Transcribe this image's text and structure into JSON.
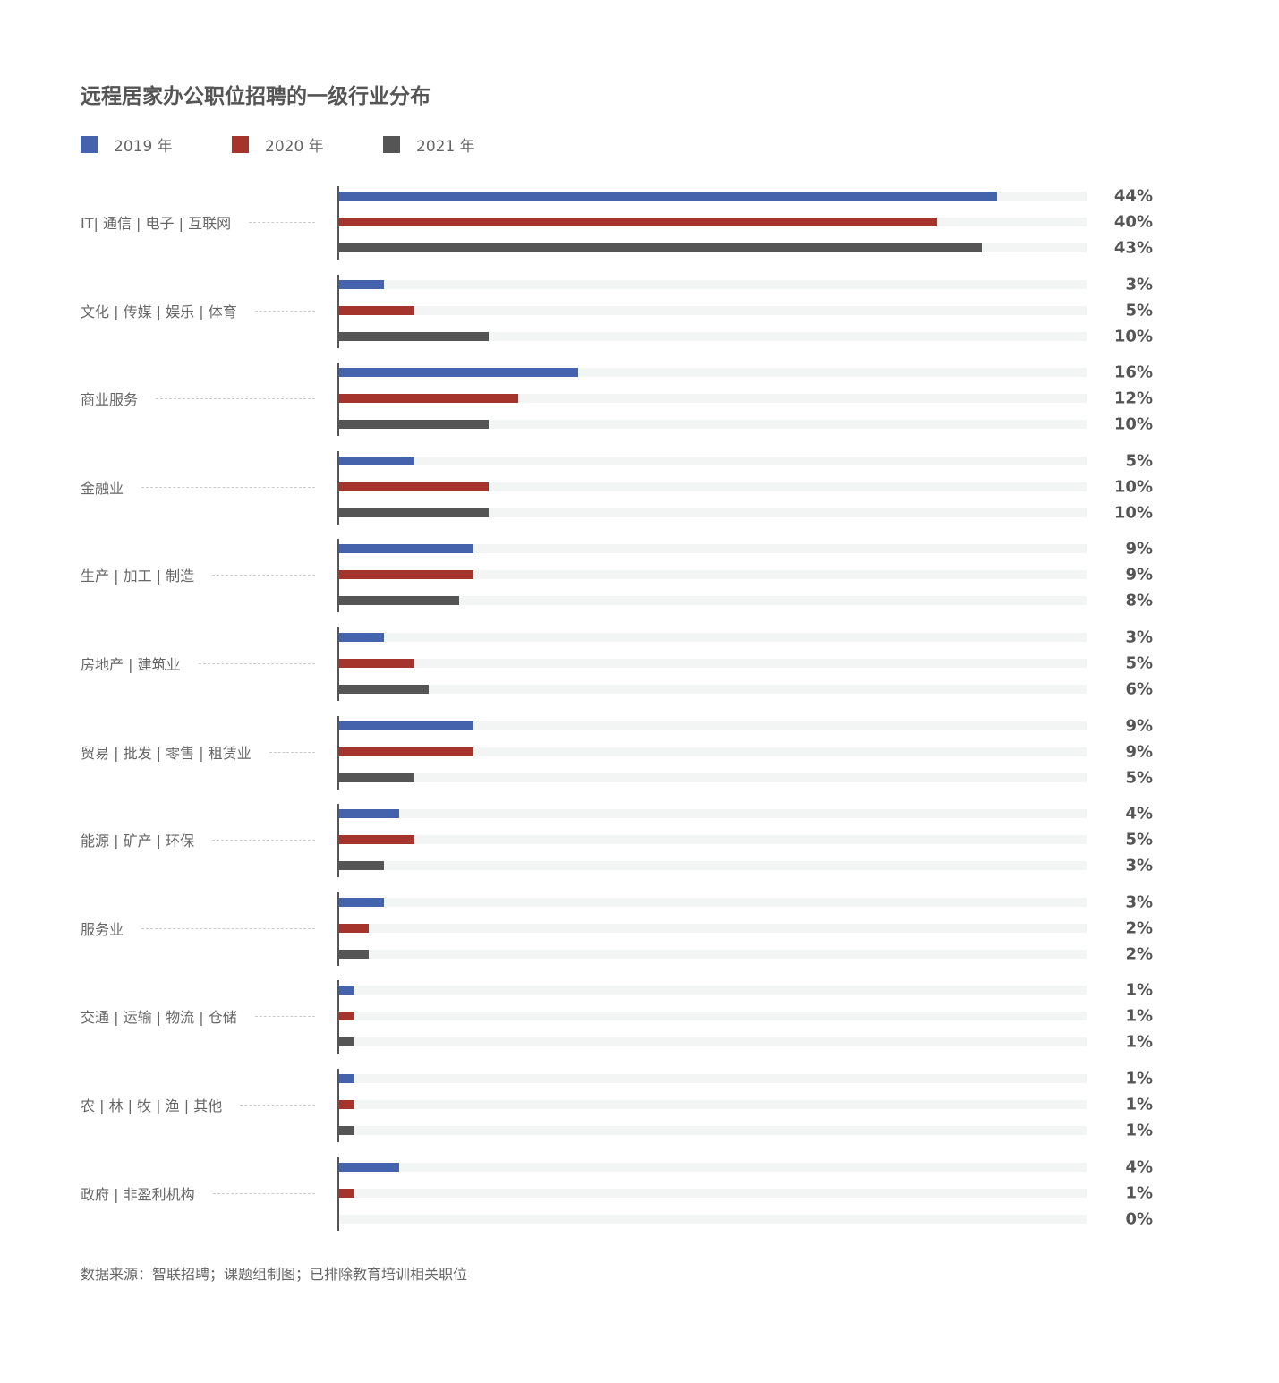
{
  "chart_data": {
    "type": "bar",
    "orientation": "horizontal",
    "title": "远程居家办公职位招聘的一级行业分布",
    "categories": [
      "IT| 通信 | 电子 | 互联网",
      "文化 | 传媒 | 娱乐 | 体育",
      "商业服务",
      "金融业",
      "生产 | 加工 | 制造",
      "房地产 | 建筑业",
      "贸易 | 批发 | 零售 | 租赁业",
      "能源 | 矿产 | 环保",
      "服务业",
      "交通 | 运输 | 物流 | 仓储",
      "农 | 林 | 牧 | 渔 | 其他",
      "政府 | 非盈利机构"
    ],
    "series": [
      {
        "name": "2019 年",
        "color": "#4562ad",
        "values": [
          44,
          3,
          16,
          5,
          9,
          3,
          9,
          4,
          3,
          1,
          1,
          4
        ]
      },
      {
        "name": "2020 年",
        "color": "#a5352c",
        "values": [
          40,
          5,
          12,
          10,
          9,
          5,
          9,
          5,
          2,
          1,
          1,
          1
        ]
      },
      {
        "name": "2021 年",
        "color": "#555555",
        "values": [
          43,
          10,
          10,
          10,
          8,
          6,
          5,
          3,
          2,
          1,
          1,
          0
        ]
      }
    ],
    "value_suffix": "%",
    "xlim": [
      0,
      50
    ],
    "grid": false,
    "legend_position": "top-left",
    "source": "数据来源：智联招聘；课题组制图；已排除教育培训相关职位"
  }
}
